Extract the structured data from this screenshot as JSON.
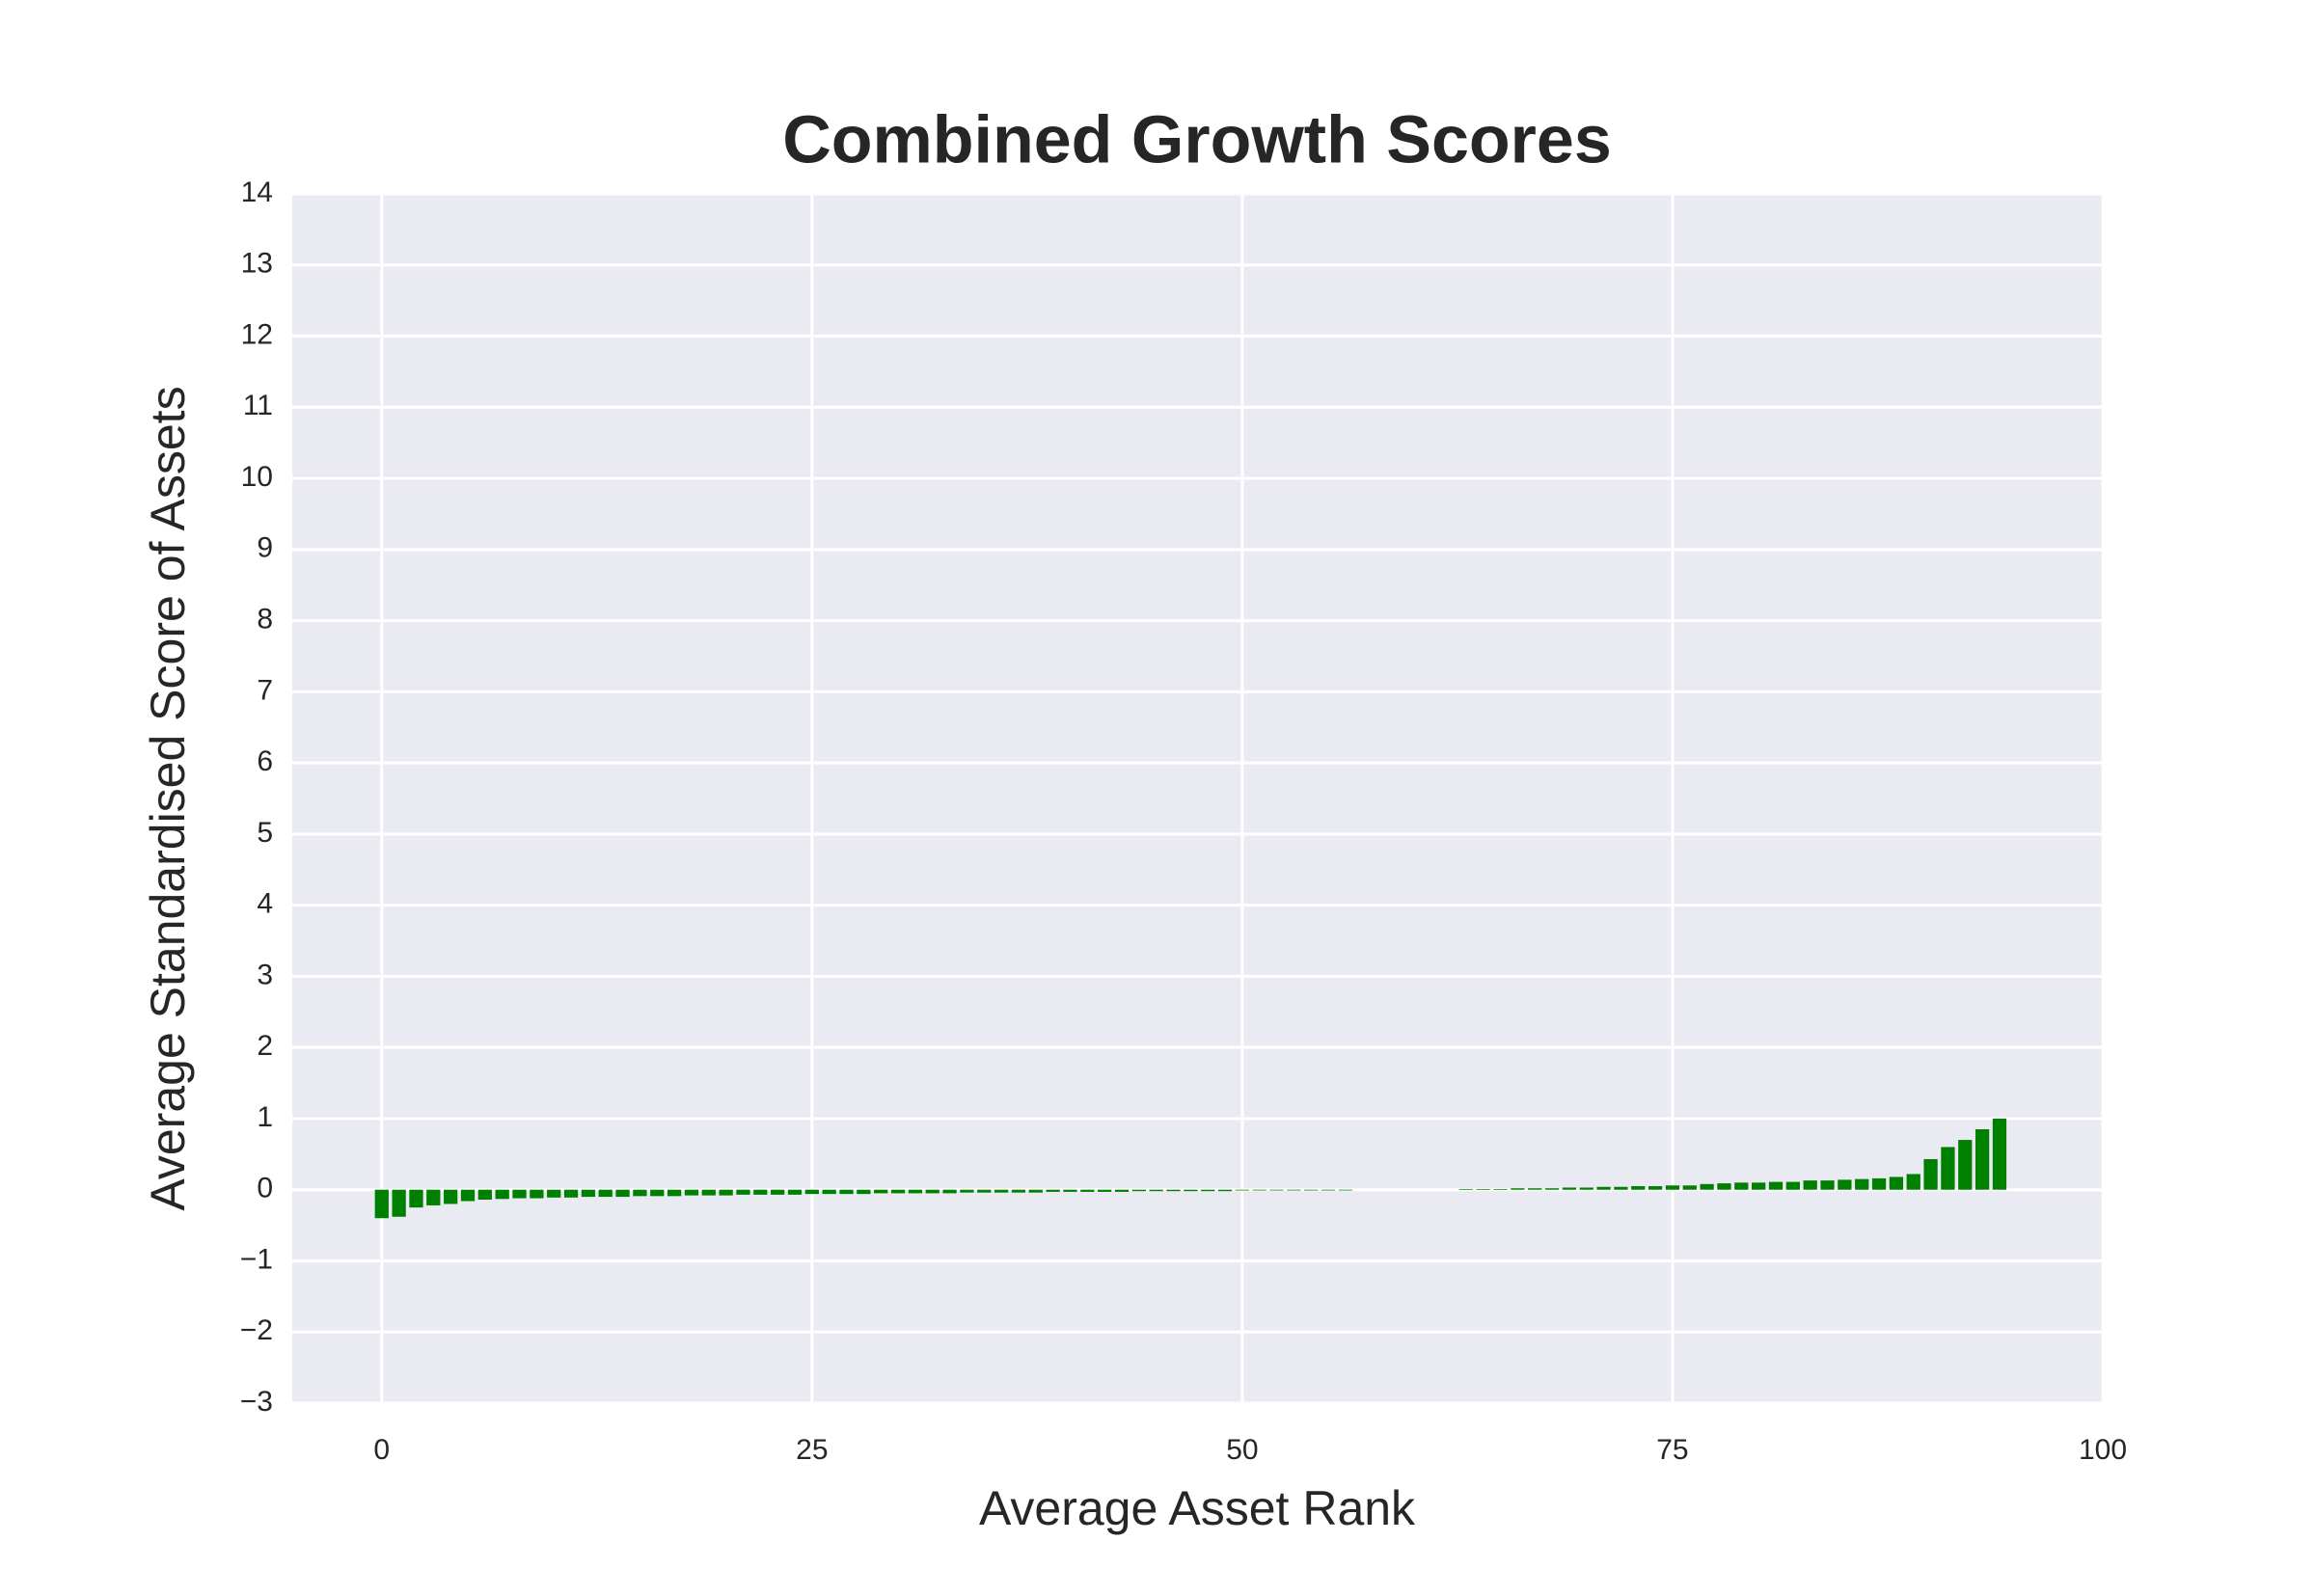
{
  "chart_data": {
    "type": "bar",
    "title": "Combined Growth Scores",
    "xlabel": "Average Asset Rank",
    "ylabel": "Average Standardised Score of Assets",
    "x": [
      0,
      1,
      2,
      3,
      4,
      5,
      6,
      7,
      8,
      9,
      10,
      11,
      12,
      13,
      14,
      15,
      16,
      17,
      18,
      19,
      20,
      21,
      22,
      23,
      24,
      25,
      26,
      27,
      28,
      29,
      30,
      31,
      32,
      33,
      34,
      35,
      36,
      37,
      38,
      39,
      40,
      41,
      42,
      43,
      44,
      45,
      46,
      47,
      48,
      49,
      50,
      51,
      52,
      53,
      54,
      55,
      56,
      57,
      58,
      59,
      60,
      61,
      62,
      63,
      64,
      65,
      66,
      67,
      68,
      69,
      70,
      71,
      72,
      73,
      74,
      75,
      76,
      77,
      78,
      79,
      80,
      81,
      82,
      83,
      84,
      85,
      86,
      87,
      88,
      89,
      90,
      91,
      92,
      93,
      94
    ],
    "values": [
      -0.4,
      -0.38,
      -0.25,
      -0.22,
      -0.2,
      -0.16,
      -0.14,
      -0.13,
      -0.12,
      -0.12,
      -0.11,
      -0.11,
      -0.1,
      -0.1,
      -0.1,
      -0.09,
      -0.09,
      -0.09,
      -0.08,
      -0.08,
      -0.08,
      -0.07,
      -0.07,
      -0.07,
      -0.07,
      -0.06,
      -0.06,
      -0.06,
      -0.06,
      -0.05,
      -0.05,
      -0.05,
      -0.05,
      -0.05,
      -0.04,
      -0.04,
      -0.04,
      -0.04,
      -0.04,
      -0.03,
      -0.03,
      -0.03,
      -0.03,
      -0.03,
      -0.02,
      -0.02,
      -0.02,
      -0.02,
      -0.02,
      -0.02,
      -0.01,
      -0.01,
      -0.01,
      -0.01,
      -0.01,
      -0.01,
      -0.01,
      0,
      0,
      0,
      0,
      0,
      0,
      0.01,
      0.01,
      0.01,
      0.02,
      0.02,
      0.02,
      0.03,
      0.03,
      0.04,
      0.04,
      0.05,
      0.05,
      0.06,
      0.06,
      0.08,
      0.09,
      0.1,
      0.1,
      0.11,
      0.11,
      0.13,
      0.13,
      0.14,
      0.15,
      0.16,
      0.18,
      0.22,
      0.43,
      0.6,
      0.7,
      0.85,
      1.0
    ],
    "color": "#008000",
    "bar_width": 0.8,
    "xlim": [
      -5.2,
      100
    ],
    "xticks": [
      0,
      25,
      50,
      75,
      100
    ],
    "ylim": [
      -3,
      14
    ],
    "yticks": [
      {
        "value": -3,
        "label": "−3"
      },
      {
        "value": -2,
        "label": "−2"
      },
      {
        "value": -1,
        "label": "−1"
      },
      0,
      1,
      2,
      3,
      4,
      5,
      6,
      7,
      8,
      9,
      10,
      11,
      12,
      13,
      14
    ],
    "grid": true
  }
}
